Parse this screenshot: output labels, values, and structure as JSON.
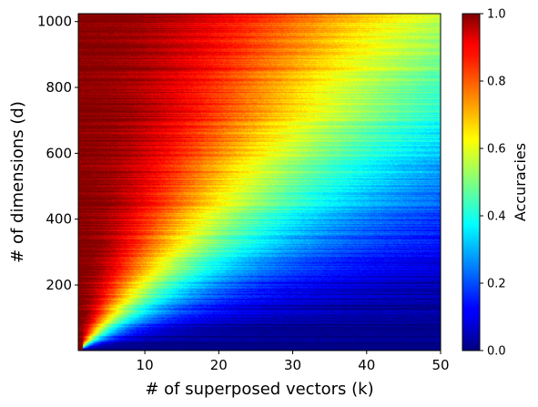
{
  "chart_data": {
    "type": "heatmap",
    "title": "",
    "xlabel": "# of superposed vectors (k)",
    "ylabel": "# of dimensions (d)",
    "xlim": [
      1,
      50
    ],
    "ylim": [
      1,
      1024
    ],
    "x_ticks": [
      "10",
      "20",
      "30",
      "40",
      "50"
    ],
    "y_ticks": [
      "200",
      "400",
      "600",
      "800",
      "1000"
    ],
    "colormap": "jet",
    "colorbar": {
      "label": "Accuracies",
      "range": [
        0.0,
        1.0
      ],
      "ticks": [
        "0.0",
        "0.2",
        "0.4",
        "0.6",
        "0.8",
        "1.0"
      ]
    },
    "accuracy_model": {
      "description": "accuracy ≈ 1 at k=1 and falls as k/d grows",
      "scale": 40,
      "exponent": 1.0
    },
    "grid": false,
    "legend": "none"
  }
}
